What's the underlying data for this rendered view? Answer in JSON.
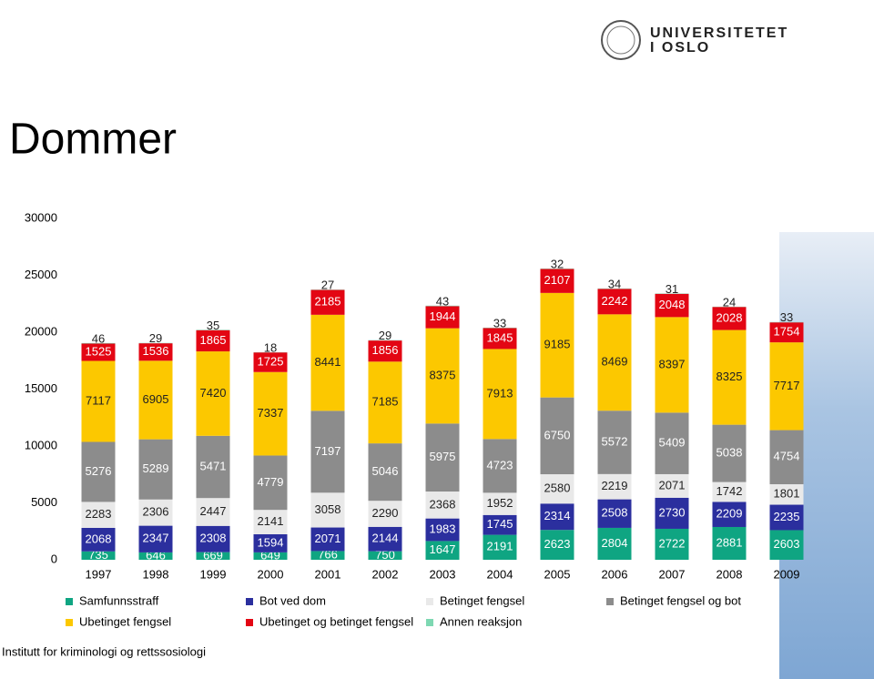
{
  "logo": {
    "line1": "UNIVERSITETET",
    "line2": "I OSLO"
  },
  "footer": "Institutt for kriminologi og rettssosiologi",
  "chart_data": {
    "type": "stacked_bar",
    "title": "Dommer",
    "categories": [
      "1997",
      "1998",
      "1999",
      "2000",
      "2001",
      "2002",
      "2003",
      "2004",
      "2005",
      "2006",
      "2007",
      "2008",
      "2009"
    ],
    "ylim": [
      0,
      30000
    ],
    "yticks": [
      0,
      5000,
      10000,
      15000,
      20000,
      25000,
      30000
    ],
    "grid": false,
    "series": [
      {
        "name": "Samfunnsstraff",
        "color": "#0fa582",
        "values": [
          735,
          646,
          669,
          649,
          766,
          750,
          1647,
          2191,
          2623,
          2804,
          2722,
          2881,
          2603
        ]
      },
      {
        "name": "Bot ved dom",
        "color": "#2b2f9e",
        "values": [
          2068,
          2347,
          2308,
          1594,
          2071,
          2144,
          1983,
          1745,
          2314,
          2508,
          2730,
          2209,
          2235
        ]
      },
      {
        "name": "Betinget fengsel",
        "color": "#e9e9e9",
        "values": [
          2283,
          2306,
          2447,
          2141,
          3058,
          2290,
          2368,
          1952,
          2580,
          2219,
          2071,
          1742,
          1801
        ]
      },
      {
        "name": "Betinget fengsel og bot",
        "color": "#8c8c8c",
        "values": [
          5276,
          5289,
          5471,
          4779,
          7197,
          5046,
          5975,
          4723,
          6750,
          5572,
          5409,
          5038,
          4754
        ]
      },
      {
        "name": "Ubetinget fengsel",
        "color": "#fcc800",
        "values": [
          7117,
          6905,
          7420,
          7337,
          8441,
          7185,
          8375,
          7913,
          9185,
          8469,
          8397,
          8325,
          7717
        ]
      },
      {
        "name": "Ubetinget og betinget fengsel",
        "color": "#e30613",
        "values": [
          1525,
          1536,
          1865,
          1725,
          2185,
          1856,
          1944,
          1845,
          2107,
          2242,
          2048,
          2028,
          1754
        ]
      },
      {
        "name": "Annen reaksjon",
        "color": "#7ed8b2",
        "values": [
          46,
          29,
          35,
          18,
          27,
          29,
          43,
          33,
          32,
          34,
          31,
          24,
          33
        ]
      }
    ]
  }
}
